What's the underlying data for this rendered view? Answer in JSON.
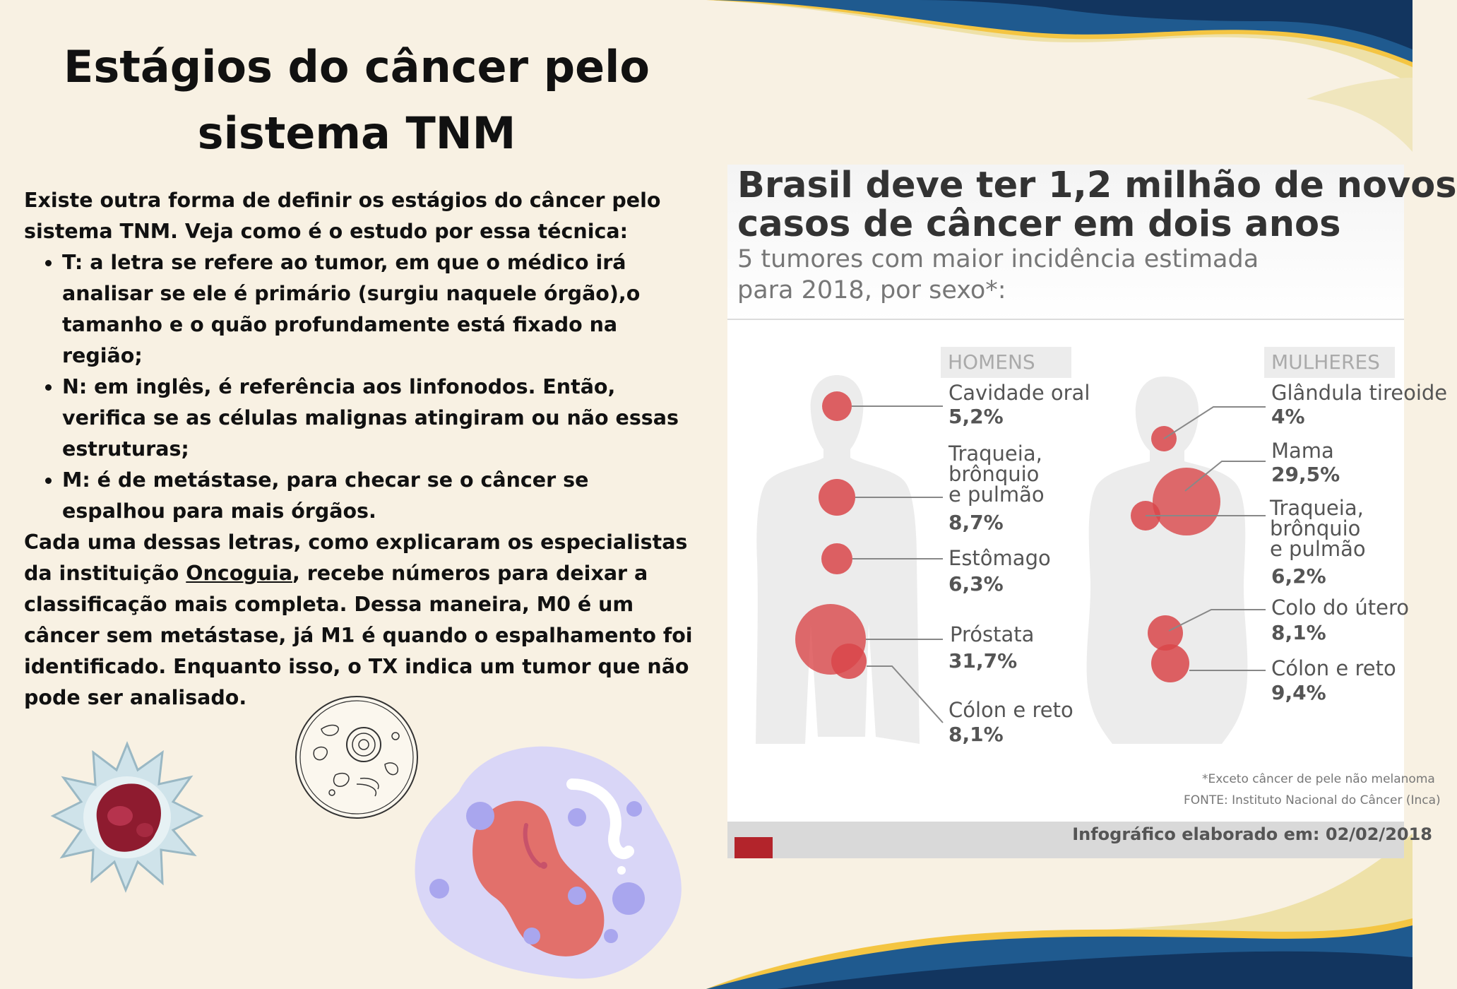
{
  "page": {
    "title_line1": "Estágios do câncer pelo",
    "title_line2": "sistema TNM",
    "intro": "Existe outra forma de definir os estágios do câncer pelo sistema TNM. Veja como é o estudo por essa técnica:",
    "bullets": [
      "T: a letra se refere ao tumor, em que o médico irá analisar se ele é primário (surgiu naquele órgão),o tamanho e o quão profundamente está fixado na região;",
      "N: em inglês, é referência aos linfonodos. Então, verifica se as células malignas atingiram ou não essas estruturas;",
      "M: é de metástase, para checar se o câncer se espalhou para mais órgãos."
    ],
    "closing_before_link": "Cada uma dessas letras, como explicaram os especialistas da instituição ",
    "closing_link": "Oncoguia",
    "closing_after_link": ", recebe números para deixar a classificação mais completa. Dessa maneira, M0 é um câncer sem metástase, já M1 é quando o espalhamento foi identificado. Enquanto isso, o TX indica um tumor que não pode ser analisado."
  },
  "infographic": {
    "title_line1": "Brasil deve ter 1,2 milhão de novos",
    "title_line2": "casos de câncer em dois anos",
    "subtitle_line1": "5 tumores com maior incidência estimada",
    "subtitle_line2": "para 2018, por sexo*:",
    "men": {
      "tag": "HOMENS",
      "items": [
        {
          "label": "Cavidade oral",
          "pct": "5,2%"
        },
        {
          "label": "Traqueia,\nbrônquio\ne pulmão",
          "pct": "8,7%"
        },
        {
          "label": "Estômago",
          "pct": "6,3%"
        },
        {
          "label": "Próstata",
          "pct": "31,7%"
        },
        {
          "label": "Cólon e reto",
          "pct": "8,1%"
        }
      ]
    },
    "women": {
      "tag": "MULHERES",
      "items": [
        {
          "label": "Glândula tireoide",
          "pct": "4%"
        },
        {
          "label": "Mama",
          "pct": "29,5%"
        },
        {
          "label": "Traqueia,\nbrônquio\ne pulmão",
          "pct": "6,2%"
        },
        {
          "label": "Colo do útero",
          "pct": "8,1%"
        },
        {
          "label": "Cólon e reto",
          "pct": "9,4%"
        }
      ]
    },
    "footnote": "*Exceto câncer de pele não melanoma",
    "source": "FONTE: Instituto Nacional do Câncer (Inca)",
    "date_label": "Infográfico elaborado em: 02/02/2018"
  },
  "colors": {
    "background": "#f8f1e3",
    "wave_navy": "#12355f",
    "wave_blue": "#1f5a8f",
    "wave_gold": "#f4c542",
    "tumor_red": "#d9474a"
  }
}
